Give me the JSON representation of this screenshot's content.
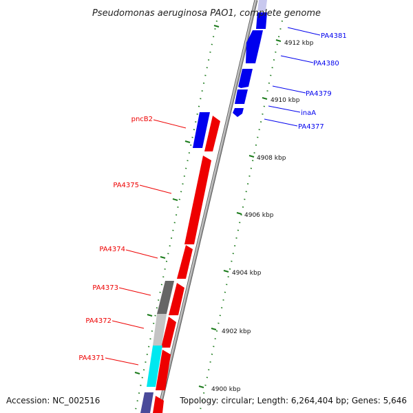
{
  "title": "Pseudomonas aeruginosa PAO1, complete genome",
  "footer": {
    "accession": "Accession: NC_002516",
    "topology": "Topology: circular; Length: 6,264,404 bp; Genes: 5,646"
  },
  "colors": {
    "forward": "#0000ee",
    "reverse": "#ee0000",
    "tick": "#1a7a1a",
    "backbone": "#888888"
  },
  "scale_labels": [
    "4912 kbp",
    "4910 kbp",
    "4908 kbp",
    "4906 kbp",
    "4904 kbp",
    "4902 kbp",
    "4900 kbp"
  ],
  "genes_right": [
    "PA4381",
    "PA4380",
    "PA4379",
    "inaA",
    "PA4377"
  ],
  "genes_left": [
    "pncB2",
    "PA4375",
    "PA4374",
    "PA4373",
    "PA4372",
    "PA4371"
  ]
}
